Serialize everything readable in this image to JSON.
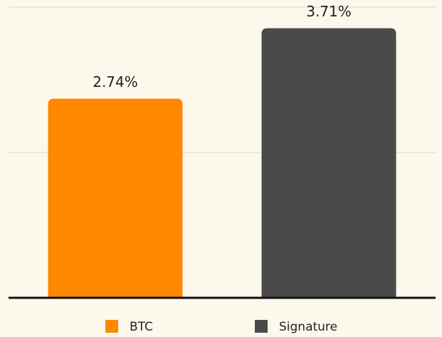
{
  "chart_data": {
    "type": "bar",
    "categories": [
      "BTC",
      "Signature"
    ],
    "values": [
      2.74,
      3.71
    ],
    "value_labels": [
      "2.74%",
      "3.71%"
    ],
    "colors": [
      "#ff8800",
      "#4a4a4a"
    ],
    "ylim": [
      0,
      4
    ],
    "yticks": [
      0,
      2,
      4
    ],
    "grid": true
  }
}
